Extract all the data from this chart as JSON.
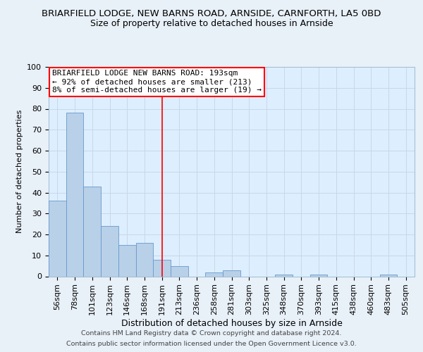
{
  "title1": "BRIARFIELD LODGE, NEW BARNS ROAD, ARNSIDE, CARNFORTH, LA5 0BD",
  "title2": "Size of property relative to detached houses in Arnside",
  "xlabel": "Distribution of detached houses by size in Arnside",
  "ylabel": "Number of detached properties",
  "categories": [
    "56sqm",
    "78sqm",
    "101sqm",
    "123sqm",
    "146sqm",
    "168sqm",
    "191sqm",
    "213sqm",
    "236sqm",
    "258sqm",
    "281sqm",
    "303sqm",
    "325sqm",
    "348sqm",
    "370sqm",
    "393sqm",
    "415sqm",
    "438sqm",
    "460sqm",
    "483sqm",
    "505sqm"
  ],
  "values": [
    36,
    78,
    43,
    24,
    15,
    16,
    8,
    5,
    0,
    2,
    3,
    0,
    0,
    1,
    0,
    1,
    0,
    0,
    0,
    1,
    0
  ],
  "bar_color": "#b8d0e8",
  "bar_edge_color": "#6699cc",
  "grid_color": "#c8d8e8",
  "background_color": "#ddeeff",
  "fig_background_color": "#e8f0f8",
  "redline_index": 6,
  "annotation_text": "BRIARFIELD LODGE NEW BARNS ROAD: 193sqm\n← 92% of detached houses are smaller (213)\n8% of semi-detached houses are larger (19) →",
  "footer1": "Contains HM Land Registry data © Crown copyright and database right 2024.",
  "footer2": "Contains public sector information licensed under the Open Government Licence v3.0.",
  "ylim": [
    0,
    100
  ],
  "title1_fontsize": 9.5,
  "title2_fontsize": 9,
  "xlabel_fontsize": 9,
  "ylabel_fontsize": 8,
  "tick_fontsize": 8,
  "annotation_fontsize": 8,
  "footer_fontsize": 6.8
}
